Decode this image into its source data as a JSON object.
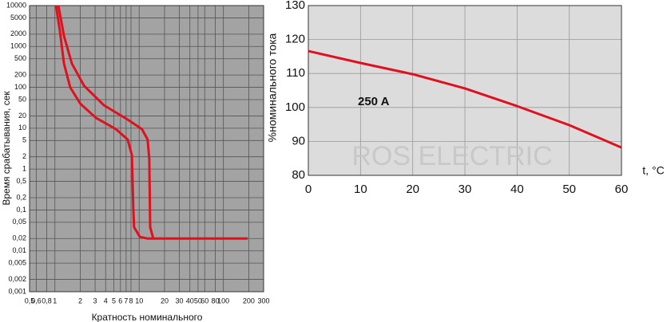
{
  "chart_data": [
    {
      "type": "line",
      "log_x": true,
      "log_y": true,
      "ylabel": "Время срабатывания, сек",
      "xlabel": "Кратность номинального",
      "xlim": [
        0.5,
        300
      ],
      "ylim": [
        0.001,
        10000
      ],
      "xticks": [
        {
          "value": 0.5,
          "label": "0,5"
        },
        {
          "value": 0.6,
          "label": "0,6"
        },
        {
          "value": 0.8,
          "label": "0,8"
        },
        1,
        2,
        3,
        4,
        5,
        6,
        7,
        8,
        10,
        20,
        30,
        40,
        50,
        60,
        80,
        100,
        200,
        300
      ],
      "yticks": [
        10000,
        5000,
        2000,
        1000,
        500,
        200,
        100,
        50,
        20,
        10,
        5,
        2,
        1,
        {
          "value": 0.5,
          "label": "0,5"
        },
        {
          "value": 0.2,
          "label": "0,2"
        },
        {
          "value": 0.1,
          "label": "0,1"
        },
        {
          "value": 0.05,
          "label": "0,05"
        },
        {
          "value": 0.02,
          "label": "0,02"
        },
        {
          "value": 0.01,
          "label": "0,01"
        },
        {
          "value": 0.005,
          "label": "0,005"
        },
        {
          "value": 0.002,
          "label": "0,002"
        },
        {
          "value": 0.001,
          "label": "0,001"
        }
      ],
      "grid": true,
      "background": "#a3a3a3",
      "series": [
        {
          "color": "#e0101e",
          "x": [
            1.03,
            1.15,
            1.28,
            1.52,
            2,
            3.06,
            5.3,
            7.3,
            8.2,
            8.5,
            8.7,
            10.2,
            12.6,
            194
          ],
          "values": [
            10000,
            2300,
            380,
            100,
            40,
            18,
            9.5,
            5.3,
            2.2,
            0.12,
            0.038,
            0.022,
            0.02,
            0.02
          ]
        },
        {
          "color": "#e0101e",
          "x": [
            1.1,
            1.28,
            1.59,
            2.21,
            3.81,
            7.3,
            10.8,
            12.6,
            13.2,
            13.5,
            14.7
          ],
          "values": [
            10000,
            1800,
            380,
            110,
            36.5,
            16.3,
            9.5,
            5.3,
            1.73,
            0.038,
            0.02
          ]
        }
      ]
    },
    {
      "type": "line",
      "ylabel": "%номинального тока",
      "xlabel": "t, °C",
      "annotation": "250 A",
      "watermark": "ROS ELECTRIC",
      "xlim": [
        0,
        60
      ],
      "ylim": [
        80,
        130
      ],
      "xticks": [
        0,
        10,
        20,
        30,
        40,
        50,
        60
      ],
      "yticks": [
        80,
        90,
        100,
        110,
        120,
        130
      ],
      "grid": true,
      "background": "#dcdcdc",
      "series": [
        {
          "color": "#e0101e",
          "x": [
            0,
            10,
            20,
            30,
            40,
            50,
            60
          ],
          "values": [
            116.6,
            113.1,
            109.8,
            105.6,
            100.4,
            94.8,
            88.2
          ]
        }
      ]
    }
  ]
}
